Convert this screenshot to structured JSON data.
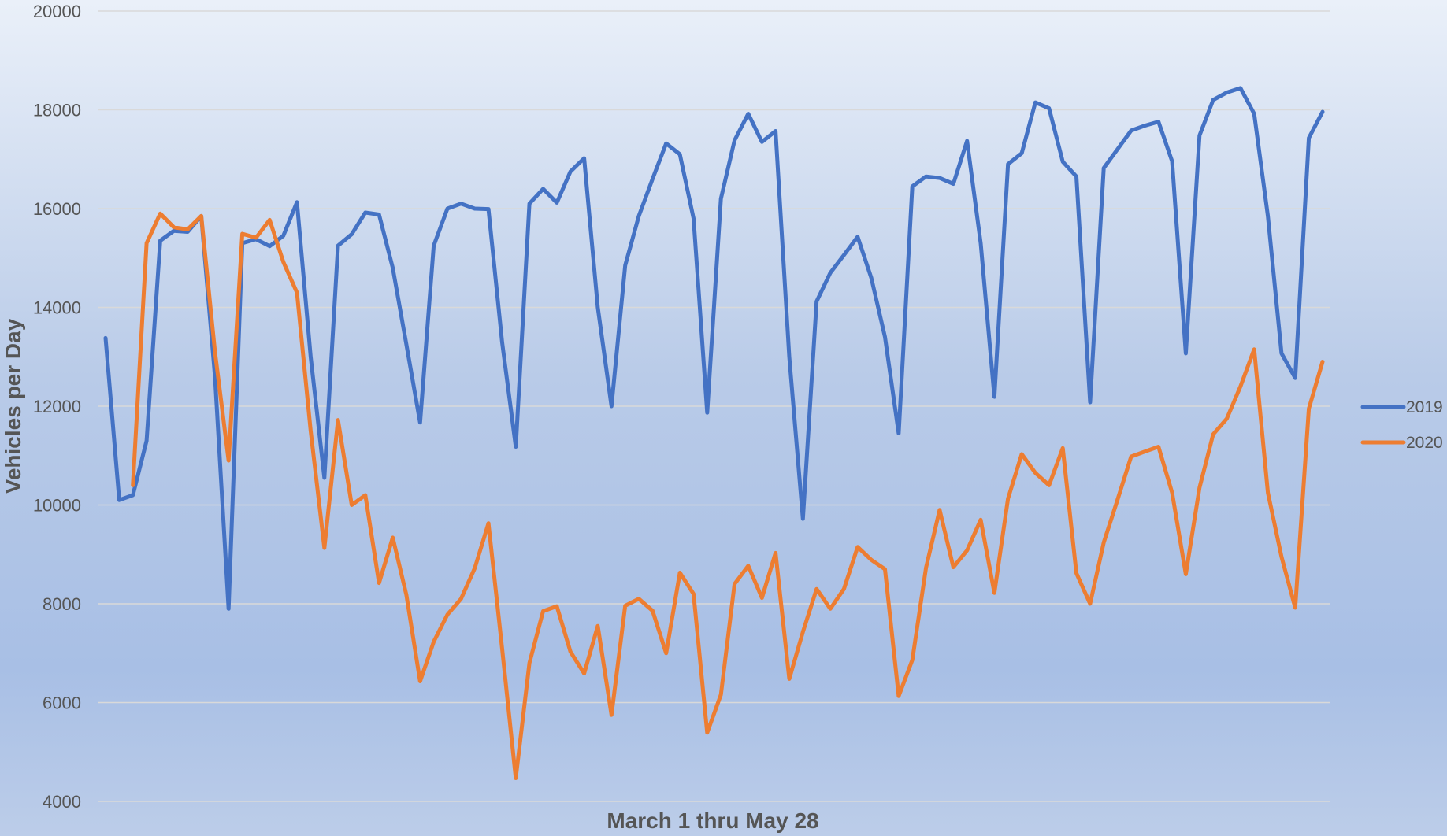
{
  "chart_data": {
    "type": "line",
    "title": "",
    "xlabel": "March 1 thru May 28",
    "ylabel": "Vehicles per Day",
    "ylim": [
      4000,
      20000
    ],
    "yticks": [
      "4000",
      "6000",
      "8000",
      "10000",
      "12000",
      "14000",
      "16000",
      "18000",
      "20000"
    ],
    "grid": true,
    "legend_position": "right",
    "series": [
      {
        "name": "2019",
        "color": "#4472c4",
        "values": [
          13380,
          10100,
          10200,
          11300,
          15350,
          15550,
          15530,
          15850,
          12600,
          7900,
          15300,
          15380,
          15240,
          15450,
          16130,
          13000,
          10550,
          15250,
          15480,
          15920,
          15880,
          14800,
          13250,
          11670,
          15250,
          16000,
          16100,
          16000,
          15990,
          13300,
          11180,
          16100,
          16400,
          16120,
          16750,
          17020,
          14000,
          12000,
          14850,
          15850,
          16600,
          17320,
          17100,
          15800,
          11870,
          16200,
          17380,
          17920,
          17350,
          17570,
          13000,
          9720,
          14120,
          14700,
          15060,
          15430,
          14600,
          13400,
          11450,
          16450,
          16650,
          16620,
          16500,
          17370,
          15300,
          12190,
          16900,
          17120,
          18150,
          18030,
          16950,
          16650,
          12080,
          16820,
          17200,
          17580,
          17680,
          17760,
          16960,
          13070,
          17480,
          18200,
          18350,
          18440,
          17920,
          15850,
          13070,
          12570,
          17430,
          17960
        ]
      },
      {
        "name": "2020",
        "color": "#ed7d31",
        "values": [
          null,
          null,
          10400,
          15300,
          15900,
          15620,
          15580,
          15850,
          13100,
          10900,
          15490,
          15410,
          15770,
          14920,
          14300,
          11500,
          9130,
          11720,
          10000,
          10200,
          8420,
          9340,
          8180,
          6430,
          7230,
          7780,
          8100,
          8720,
          9630,
          7100,
          4470,
          6800,
          7850,
          7950,
          7030,
          6590,
          7550,
          5750,
          7960,
          8100,
          7860,
          7000,
          8630,
          8200,
          5390,
          6160,
          8400,
          8770,
          8120,
          9030,
          6480,
          7430,
          8300,
          7900,
          8300,
          9150,
          8890,
          8700,
          6130,
          6860,
          8730,
          9900,
          8740,
          9080,
          9700,
          8220,
          10130,
          11030,
          10650,
          10400,
          11150,
          8620,
          8000,
          9240,
          10100,
          10980,
          11080,
          11180,
          10250,
          8600,
          10350,
          11430,
          11750,
          12400,
          13150,
          10250,
          8950,
          7920,
          11950,
          12900
        ]
      }
    ]
  }
}
